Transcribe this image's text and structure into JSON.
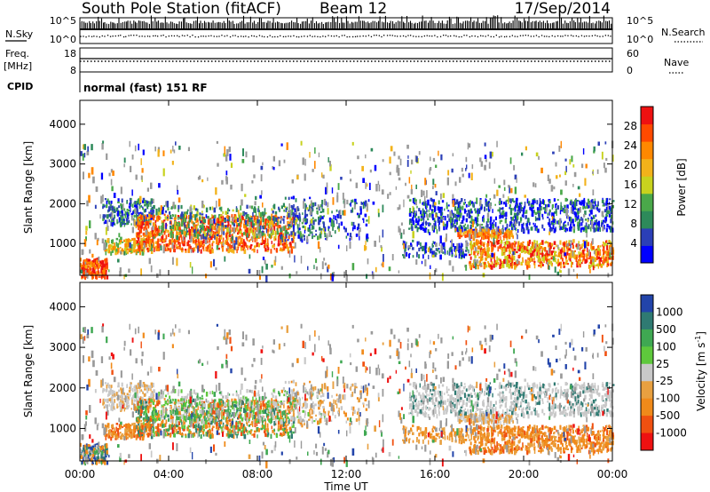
{
  "header": {
    "station": "South Pole Station (fitACF)",
    "beam": "Beam 12",
    "date": "17/Sep/2014"
  },
  "nsky_panel": {
    "left_label": "N.Sky",
    "right_label": "N.Search",
    "left_ticks": [
      "10^5",
      "10^0"
    ],
    "right_ticks": [
      "10^5",
      "10^0"
    ]
  },
  "freq_panel": {
    "left_label_1": "Freq.",
    "left_label_2": "[MHz]",
    "right_label": "Nave",
    "left_ticks": [
      "18",
      "8"
    ],
    "right_ticks": [
      "60",
      "0"
    ]
  },
  "cpid": {
    "label": "CPID",
    "value": "normal (fast) 151 RF"
  },
  "colors": {
    "power": [
      "#0000ff",
      "#2b3fb7",
      "#2d8a5a",
      "#4aa84a",
      "#c8d21e",
      "#f2b21a",
      "#ff8800",
      "#ff4a00",
      "#ee1111"
    ],
    "velocity": [
      "#2244aa",
      "#2f7a72",
      "#3fa852",
      "#5ec83c",
      "#c8c8c8",
      "#e8a040",
      "#f08a1a",
      "#f05010",
      "#ee1111"
    ],
    "noise": "#9a9a9a"
  },
  "chart_data": [
    {
      "type": "heatmap",
      "name": "power",
      "ylabel": "Slant Range [km]",
      "yticks": [
        "1000",
        "2000",
        "3000",
        "4000"
      ],
      "ylim": [
        200,
        4600
      ],
      "x_range": [
        "00:00",
        "24:00"
      ],
      "colorbar_label": "Power [dB]",
      "colorbar_ticks": [
        "4",
        "8",
        "12",
        "16",
        "20",
        "24",
        "28"
      ],
      "colorbar_range": [
        0,
        32
      ]
    },
    {
      "type": "heatmap",
      "name": "velocity",
      "ylabel": "Slant Range [km]",
      "yticks": [
        "1000",
        "2000",
        "3000",
        "4000"
      ],
      "ylim": [
        200,
        4600
      ],
      "x_range": [
        "00:00",
        "24:00"
      ],
      "colorbar_label": "Velocity [m s",
      "colorbar_label_sup": "-1",
      "colorbar_label_end": "]",
      "colorbar_ticks": [
        "1000",
        "500",
        "100",
        "25",
        "-25",
        "-100",
        "-500",
        "-1000"
      ]
    }
  ],
  "x_axis": {
    "label": "Time UT",
    "ticks": [
      "00:00",
      "04:00",
      "08:00",
      "12:00",
      "16:00",
      "20:00",
      "00:00"
    ]
  }
}
